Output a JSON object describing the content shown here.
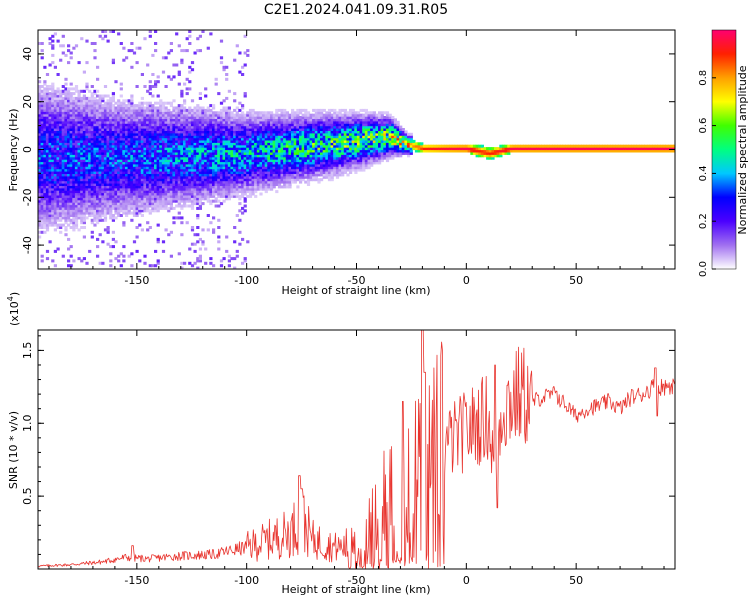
{
  "title": "C2E1.2024.041.09.31.R05",
  "colors": {
    "line": "#e8352f",
    "axis": "#000000",
    "background": "#ffffff",
    "colormap": [
      "#ffffff",
      "#a070f0",
      "#4b00ff",
      "#0000ff",
      "#00c8ff",
      "#00ff80",
      "#40ff00",
      "#ffff00",
      "#ffa000",
      "#ff2000",
      "#ff0070"
    ]
  },
  "chart_data": [
    {
      "type": "heatmap",
      "title": "C2E1.2024.041.09.31.R05",
      "xlabel": "Height of straight line (km)",
      "ylabel": "Frequency (Hz)",
      "xlim": [
        -195,
        95
      ],
      "ylim": [
        -50,
        50
      ],
      "xticks": [
        -150,
        -100,
        -50,
        0,
        50
      ],
      "yticks": [
        -40,
        -20,
        0,
        20,
        40
      ],
      "colorbar": {
        "label": "Normalized spectral amplitude",
        "range": [
          0,
          1
        ],
        "ticks": [
          "0.0",
          "0.2",
          "0.4",
          "0.6",
          "0.8"
        ]
      },
      "ridge": {
        "description": "dominant frequency ridge vs height",
        "x": [
          -195,
          -160,
          -130,
          -100,
          -80,
          -60,
          -45,
          -35,
          -28,
          -20,
          -10,
          0,
          5,
          10,
          20,
          50,
          95
        ],
        "frequency": [
          -4,
          -4,
          -3,
          -2,
          0,
          2,
          4,
          5,
          2,
          0,
          0,
          0,
          -1,
          -2,
          0,
          0,
          0
        ],
        "spread_hz": [
          15,
          12,
          10,
          8,
          7,
          6,
          5,
          4,
          2,
          1.5,
          1.5,
          1.5,
          2,
          2,
          1.5,
          1.5,
          1.5
        ],
        "peak_amplitude": [
          0.3,
          0.3,
          0.35,
          0.4,
          0.45,
          0.5,
          0.55,
          0.6,
          0.75,
          0.9,
          0.95,
          0.98,
          0.9,
          0.9,
          0.97,
          0.98,
          0.98
        ]
      }
    },
    {
      "type": "line",
      "title": "",
      "xlabel": "Height of straight line (km)",
      "ylabel": "SNR (10 * v/v)",
      "yscale_label": "(x10",
      "yscale_exponent": "4",
      "yscale_suffix": ")",
      "xlim": [
        -195,
        95
      ],
      "ylim": [
        0,
        16400
      ],
      "xticks": [
        -150,
        -100,
        -50,
        0,
        50
      ],
      "yticks": [
        5000,
        10000,
        15000
      ],
      "ytick_labels": [
        "0.5",
        "1.0",
        "1.5"
      ],
      "series": [
        {
          "name": "SNR",
          "x": [
            -195,
            -180,
            -165,
            -155,
            -145,
            -130,
            -115,
            -100,
            -90,
            -80,
            -75,
            -70,
            -60,
            -50,
            -45,
            -40,
            -35,
            -30,
            -25,
            -20,
            -15,
            -10,
            -5,
            0,
            5,
            10,
            13,
            16,
            20,
            25,
            30,
            35,
            40,
            45,
            50,
            55,
            60,
            65,
            70,
            75,
            80,
            85,
            90,
            95
          ],
          "values": [
            200,
            300,
            500,
            800,
            700,
            900,
            1000,
            1500,
            2000,
            2500,
            3500,
            2000,
            1500,
            1500,
            2500,
            3500,
            6000,
            5500,
            6000,
            7000,
            7500,
            8500,
            9000,
            9500,
            10000,
            10500,
            6500,
            11000,
            11500,
            12000,
            11500,
            11800,
            12000,
            11300,
            10500,
            11000,
            11200,
            11500,
            11000,
            11800,
            12000,
            12500,
            12500,
            12700
          ]
        }
      ],
      "spikes": [
        {
          "x": -152,
          "value": 1600
        },
        {
          "x": -76,
          "value": 6400
        },
        {
          "x": -75,
          "value": 5500
        },
        {
          "x": -29,
          "value": 11500
        },
        {
          "x": -20,
          "value": 16400
        },
        {
          "x": -19,
          "value": 13500
        },
        {
          "x": 13,
          "value": 14000
        },
        {
          "x": 14,
          "value": 4200
        },
        {
          "x": 41,
          "value": 12200
        },
        {
          "x": 86,
          "value": 13800
        },
        {
          "x": 87,
          "value": 10500
        }
      ]
    }
  ]
}
